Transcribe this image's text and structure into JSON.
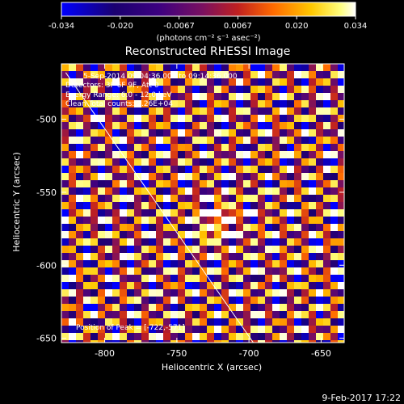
{
  "colorbar": {
    "ticks": [
      "-0.034",
      "-0.020",
      "-0.0067",
      "0.0067",
      "0.020",
      "0.034"
    ],
    "units": "(photons cm⁻² s⁻¹ asec⁻²)",
    "min": -0.034,
    "max": 0.034
  },
  "title": "Reconstructed RHESSI Image",
  "annotations": {
    "time_range": "5-Sep-2014 09:04:36.000 to 09:14:36.000",
    "detectors": "Detectors: 3F 6F 9F, Att 0",
    "energy": "Energy Range: 6.0 - 12.0 keV",
    "method": "Clean    Total counts: 2.26E+04",
    "peak": "Position of Peak = [-722,-571]"
  },
  "axes": {
    "xlabel": "Heliocentric X (arcsec)",
    "ylabel": "Heliocentric Y (arcsec)",
    "x_ticks": [
      "-800",
      "-750",
      "-700",
      "-650"
    ],
    "y_ticks": [
      "-500",
      "-550",
      "-600",
      "-650"
    ],
    "x_range": [
      -830,
      -634
    ],
    "y_range": [
      -653,
      -462
    ],
    "x_tick_values": [
      -800,
      -750,
      -700,
      -650
    ],
    "y_tick_values": [
      -500,
      -550,
      -600,
      -650
    ]
  },
  "limb_line": {
    "x_start": -827,
    "y_start": -468,
    "x_end": -697,
    "y_end": -653
  },
  "peak_position": {
    "x": -722,
    "y": -571
  },
  "date_stamp": "9-Feb-2017 17:22",
  "colors": {
    "background": "#000000",
    "text": "#ffffff",
    "colormap": [
      "#0000ff",
      "#1a0070",
      "#3c0080",
      "#7a1060",
      "#c02020",
      "#ff6a00",
      "#ffc800",
      "#ffff80",
      "#ffffff"
    ]
  }
}
